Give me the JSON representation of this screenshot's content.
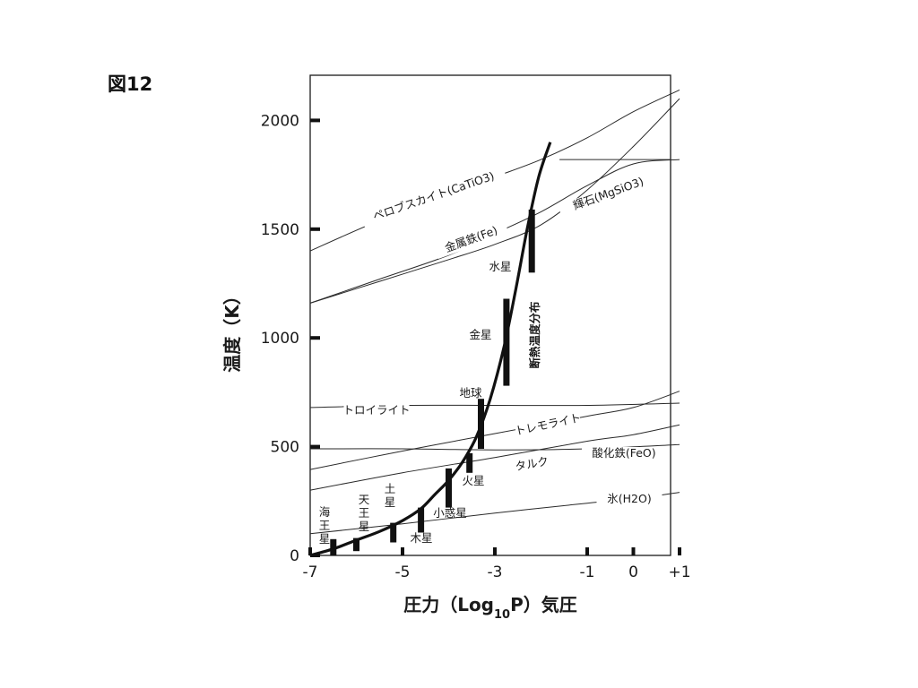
{
  "figure_label": "図12",
  "chart_data": {
    "type": "line",
    "xlabel": {
      "main": "圧力（Log",
      "sub": "10",
      "tail": "P）気圧"
    },
    "ylabel": "温度（K）",
    "xlim": [
      -7,
      1
    ],
    "ylim": [
      0,
      2200
    ],
    "x_ticks": [
      {
        "value": -7,
        "label": "-7"
      },
      {
        "value": -5,
        "label": "-5"
      },
      {
        "value": -3,
        "label": "-3"
      },
      {
        "value": -1,
        "label": "-1"
      },
      {
        "value": 0,
        "label": "0"
      },
      {
        "value": 1,
        "label": "+1"
      }
    ],
    "y_ticks": [
      {
        "value": 0,
        "label": "0"
      },
      {
        "value": 500,
        "label": "500"
      },
      {
        "value": 1000,
        "label": "1000"
      },
      {
        "value": 1500,
        "label": "1500"
      },
      {
        "value": 2000,
        "label": "2000"
      }
    ],
    "adiabat": {
      "label": "断熱温度分布",
      "points": [
        [
          -7,
          0
        ],
        [
          -6.5,
          30
        ],
        [
          -6,
          70
        ],
        [
          -5.5,
          110
        ],
        [
          -5,
          160
        ],
        [
          -4.6,
          215
        ],
        [
          -4.3,
          280
        ],
        [
          -4,
          345
        ],
        [
          -3.7,
          430
        ],
        [
          -3.4,
          545
        ],
        [
          -3.1,
          720
        ],
        [
          -2.8,
          960
        ],
        [
          -2.55,
          1220
        ],
        [
          -2.3,
          1500
        ],
        [
          -2.05,
          1740
        ],
        [
          -1.8,
          1900
        ]
      ]
    },
    "condensation_curves": [
      {
        "id": "perovskite",
        "label": "ペロブスカイト(CaTiO3)",
        "points": [
          [
            -7,
            1400
          ],
          [
            -5.5,
            1540
          ],
          [
            -4,
            1660
          ],
          [
            -3,
            1740
          ],
          [
            -2,
            1820
          ],
          [
            -1,
            1920
          ],
          [
            0,
            2040
          ],
          [
            1,
            2140
          ]
        ]
      },
      {
        "id": "pyroxene",
        "label": "輝石(MgSiO3)",
        "points": [
          [
            -7,
            1160
          ],
          [
            -5.5,
            1260
          ],
          [
            -4,
            1360
          ],
          [
            -3,
            1430
          ],
          [
            -2,
            1520
          ],
          [
            -1,
            1680
          ],
          [
            0,
            1880
          ],
          [
            1,
            2100
          ]
        ]
      },
      {
        "id": "iron",
        "label": "金属鉄(Fe)",
        "points": [
          [
            -7,
            1160
          ],
          [
            -5.5,
            1270
          ],
          [
            -4,
            1380
          ],
          [
            -3,
            1480
          ],
          [
            -2,
            1580
          ],
          [
            -1,
            1700
          ],
          [
            0,
            1800
          ],
          [
            1,
            1820
          ]
        ]
      },
      {
        "id": "troilite",
        "label": "トロイライト",
        "points": [
          [
            -7,
            680
          ],
          [
            -5,
            690
          ],
          [
            -3,
            690
          ],
          [
            -1,
            690
          ],
          [
            1,
            700
          ]
        ]
      },
      {
        "id": "tremolite",
        "label": "トレモライト",
        "points": [
          [
            -7,
            395
          ],
          [
            -5,
            480
          ],
          [
            -3,
            560
          ],
          [
            -1,
            640
          ],
          [
            0,
            680
          ],
          [
            1,
            755
          ]
        ]
      },
      {
        "id": "ferrous-oxide",
        "label": "酸化鉄(FeO)",
        "points": [
          [
            -7,
            490
          ],
          [
            -5,
            490
          ],
          [
            -3,
            485
          ],
          [
            -1,
            490
          ],
          [
            1,
            510
          ]
        ]
      },
      {
        "id": "talc",
        "label": "タルク",
        "points": [
          [
            -7,
            300
          ],
          [
            -5,
            380
          ],
          [
            -3,
            450
          ],
          [
            -1,
            525
          ],
          [
            0,
            555
          ],
          [
            1,
            600
          ]
        ]
      },
      {
        "id": "ice",
        "label": "氷(H2O)",
        "points": [
          [
            -7,
            100
          ],
          [
            -5,
            145
          ],
          [
            -3,
            195
          ],
          [
            -1,
            240
          ],
          [
            0,
            260
          ],
          [
            1,
            290
          ]
        ]
      }
    ],
    "planet_ranges": [
      {
        "name": "水星",
        "x": -2.2,
        "ymin": 1300,
        "ymax": 1590
      },
      {
        "name": "金星",
        "x": -2.75,
        "ymin": 780,
        "ymax": 1180
      },
      {
        "name": "地球",
        "x": -3.3,
        "ymin": 490,
        "ymax": 720
      },
      {
        "name": "火星",
        "x": -3.55,
        "ymin": 380,
        "ymax": 470
      },
      {
        "name": "小惑星",
        "x": -4.0,
        "ymin": 220,
        "ymax": 400
      },
      {
        "name": "木星",
        "x": -4.6,
        "ymin": 105,
        "ymax": 220
      },
      {
        "name": "土星",
        "x": -5.2,
        "ymin": 60,
        "ymax": 150
      },
      {
        "name": "天王星",
        "x": -6.0,
        "ymin": 20,
        "ymax": 80
      },
      {
        "name": "海王星",
        "x": -6.5,
        "ymin": 0,
        "ymax": 75
      }
    ]
  }
}
